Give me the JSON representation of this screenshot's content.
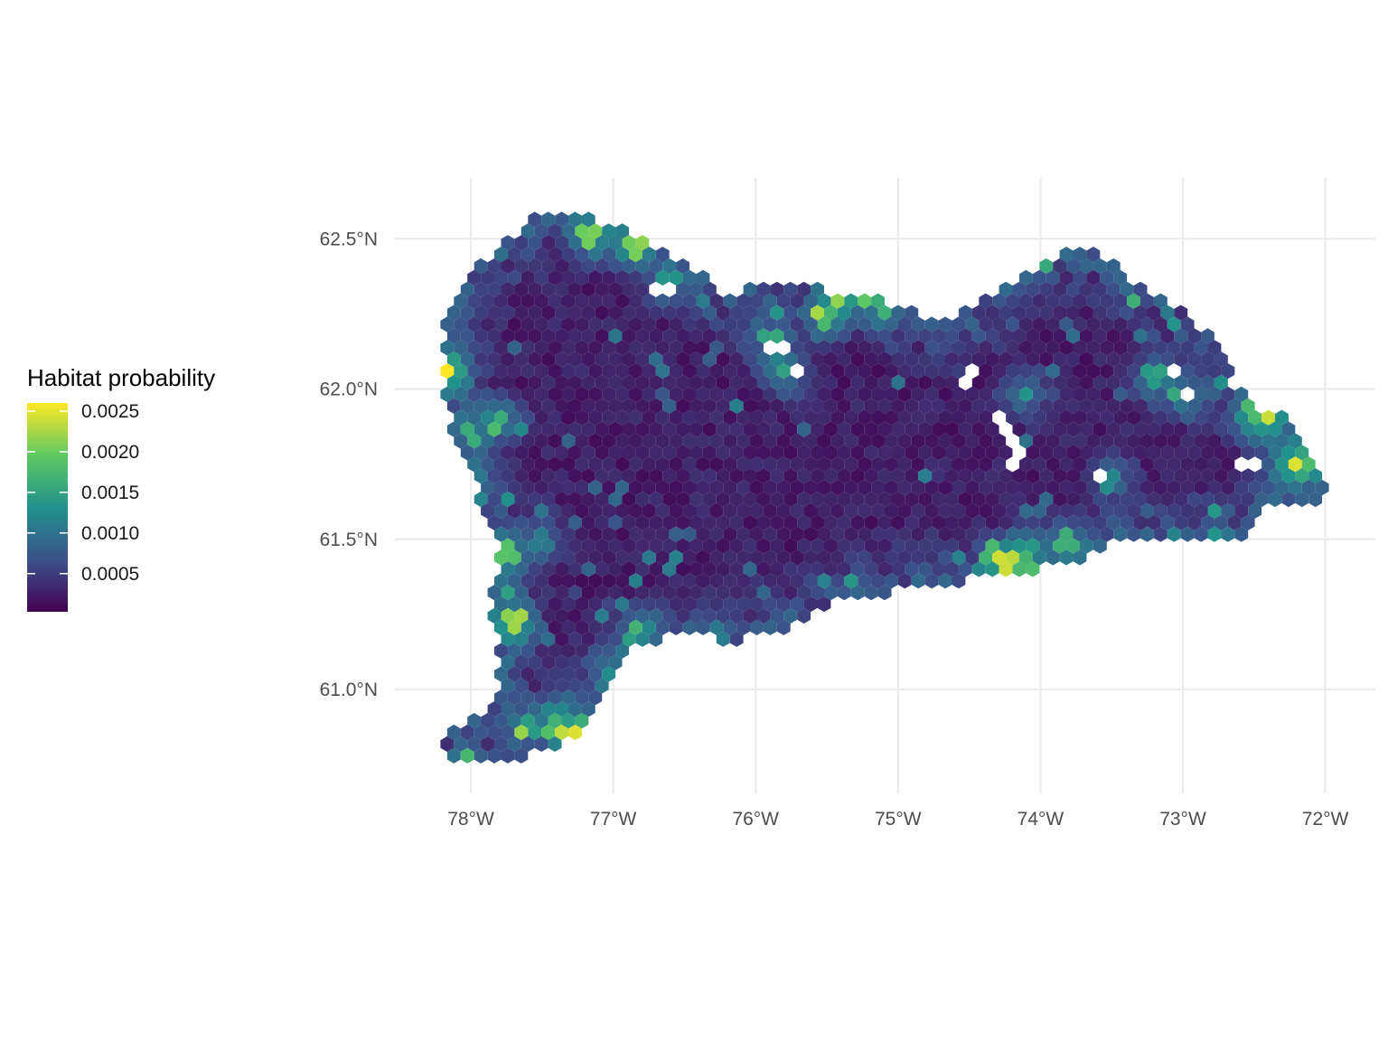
{
  "chart_data": {
    "type": "heatmap",
    "geometry": "hexbin-map",
    "legend": {
      "title": "Habitat probability",
      "placement": "left",
      "scale": "viridis",
      "range": [
        3e-05,
        0.0026
      ],
      "breaks": [
        0.0025,
        0.002,
        0.0015,
        0.001,
        0.0005
      ],
      "break_labels": [
        "0.0025",
        "0.0020",
        "0.0015",
        "0.0010",
        "0.0005"
      ],
      "colors": [
        "#440154",
        "#3b528b",
        "#21918c",
        "#5ec962",
        "#fde725"
      ]
    },
    "x_axis": {
      "unit": "degrees longitude",
      "range": [
        -78.55,
        -71.83
      ],
      "ticks": [
        -78,
        -77,
        -76,
        -75,
        -74,
        -73,
        -72
      ],
      "tick_labels": [
        "78°W",
        "77°W",
        "76°W",
        "75°W",
        "74°W",
        "73°W",
        "72°W"
      ]
    },
    "y_axis": {
      "unit": "degrees latitude",
      "range": [
        60.7,
        62.7
      ],
      "ticks": [
        61.0,
        61.5,
        62.0,
        62.5
      ],
      "tick_labels": [
        "61.0°N",
        "61.5°N",
        "62.0°N",
        "62.5°N"
      ]
    },
    "grid": true,
    "region_outline": [
      [
        -78.2,
        60.78
      ],
      [
        -77.85,
        60.75
      ],
      [
        -77.35,
        60.8
      ],
      [
        -77.1,
        60.95
      ],
      [
        -76.9,
        61.15
      ],
      [
        -76.5,
        61.18
      ],
      [
        -76.2,
        61.16
      ],
      [
        -75.8,
        61.2
      ],
      [
        -75.5,
        61.28
      ],
      [
        -75.15,
        61.32
      ],
      [
        -74.9,
        61.33
      ],
      [
        -74.6,
        61.36
      ],
      [
        -74.2,
        61.38
      ],
      [
        -73.8,
        61.42
      ],
      [
        -73.45,
        61.5
      ],
      [
        -73.0,
        61.5
      ],
      [
        -72.5,
        61.52
      ],
      [
        -72.4,
        61.6
      ],
      [
        -72.2,
        61.6
      ],
      [
        -71.98,
        61.65
      ],
      [
        -72.1,
        61.8
      ],
      [
        -72.25,
        61.9
      ],
      [
        -72.5,
        61.95
      ],
      [
        -72.65,
        62.02
      ],
      [
        -72.65,
        62.12
      ],
      [
        -72.8,
        62.18
      ],
      [
        -73.0,
        62.25
      ],
      [
        -73.3,
        62.35
      ],
      [
        -73.7,
        62.48
      ],
      [
        -74.0,
        62.42
      ],
      [
        -74.4,
        62.3
      ],
      [
        -74.7,
        62.22
      ],
      [
        -75.3,
        62.32
      ],
      [
        -75.8,
        62.35
      ],
      [
        -76.2,
        62.32
      ],
      [
        -76.7,
        62.48
      ],
      [
        -77.0,
        62.55
      ],
      [
        -77.5,
        62.6
      ],
      [
        -78.1,
        62.35
      ],
      [
        -78.2,
        62.15
      ],
      [
        -78.2,
        62.0
      ],
      [
        -78.1,
        61.8
      ],
      [
        -77.95,
        61.65
      ],
      [
        -77.78,
        61.5
      ],
      [
        -77.85,
        61.3
      ],
      [
        -77.8,
        61.1
      ],
      [
        -77.8,
        60.95
      ],
      [
        -78.15,
        60.85
      ]
    ],
    "hotspots": [
      {
        "lon": -77.3,
        "lat": 60.85,
        "value": 0.0025
      },
      {
        "lon": -77.4,
        "lat": 60.9,
        "value": 0.0018
      },
      {
        "lon": -77.6,
        "lat": 60.88,
        "value": 0.0015
      },
      {
        "lon": -77.7,
        "lat": 61.22,
        "value": 0.0023
      },
      {
        "lon": -77.75,
        "lat": 61.45,
        "value": 0.0019
      },
      {
        "lon": -78.15,
        "lat": 62.06,
        "value": 0.0025
      },
      {
        "lon": -78.0,
        "lat": 61.85,
        "value": 0.0016
      },
      {
        "lon": -77.8,
        "lat": 61.9,
        "value": 0.0016
      },
      {
        "lon": -76.85,
        "lat": 62.48,
        "value": 0.0022
      },
      {
        "lon": -77.15,
        "lat": 62.52,
        "value": 0.0021
      },
      {
        "lon": -76.6,
        "lat": 62.35,
        "value": 0.0014
      },
      {
        "lon": -76.3,
        "lat": 62.4,
        "value": 0.0012
      },
      {
        "lon": -75.4,
        "lat": 62.31,
        "value": 0.0022
      },
      {
        "lon": -75.1,
        "lat": 62.28,
        "value": 0.0017
      },
      {
        "lon": -75.9,
        "lat": 62.16,
        "value": 0.0016
      },
      {
        "lon": -75.8,
        "lat": 62.06,
        "value": 0.0016
      },
      {
        "lon": -75.5,
        "lat": 62.24,
        "value": 0.0018
      },
      {
        "lon": -74.25,
        "lat": 61.42,
        "value": 0.0025
      },
      {
        "lon": -74.1,
        "lat": 61.42,
        "value": 0.0018
      },
      {
        "lon": -73.8,
        "lat": 61.48,
        "value": 0.0017
      },
      {
        "lon": -74.1,
        "lat": 61.46,
        "value": 0.0014
      },
      {
        "lon": -72.4,
        "lat": 61.9,
        "value": 0.0025
      },
      {
        "lon": -72.22,
        "lat": 61.75,
        "value": 0.0025
      },
      {
        "lon": -72.5,
        "lat": 61.92,
        "value": 0.0018
      },
      {
        "lon": -72.15,
        "lat": 61.75,
        "value": 0.0018
      },
      {
        "lon": -73.0,
        "lat": 61.98,
        "value": 0.0016
      },
      {
        "lon": -73.2,
        "lat": 62.04,
        "value": 0.0015
      },
      {
        "lon": -74.1,
        "lat": 61.98,
        "value": 0.0014
      },
      {
        "lon": -73.5,
        "lat": 61.7,
        "value": 0.0013
      },
      {
        "lon": -77.0,
        "lat": 61.05,
        "value": 0.0013
      },
      {
        "lon": -76.8,
        "lat": 61.2,
        "value": 0.0012
      },
      {
        "lon": -76.3,
        "lat": 61.17,
        "value": 0.0012
      },
      {
        "lon": -77.5,
        "lat": 61.5,
        "value": 0.0011
      },
      {
        "lon": -77.95,
        "lat": 61.7,
        "value": 0.0011
      }
    ],
    "missing_cells": [
      [
        -76.65,
        62.33
      ],
      [
        -75.85,
        62.13
      ],
      [
        -75.7,
        62.06
      ],
      [
        -74.5,
        62.04
      ],
      [
        -74.3,
        61.92
      ],
      [
        -74.2,
        61.85
      ],
      [
        -74.15,
        61.8
      ],
      [
        -74.2,
        61.75
      ],
      [
        -73.6,
        61.7
      ],
      [
        -73.05,
        62.06
      ],
      [
        -73.0,
        61.98
      ],
      [
        -72.55,
        61.75
      ]
    ]
  }
}
